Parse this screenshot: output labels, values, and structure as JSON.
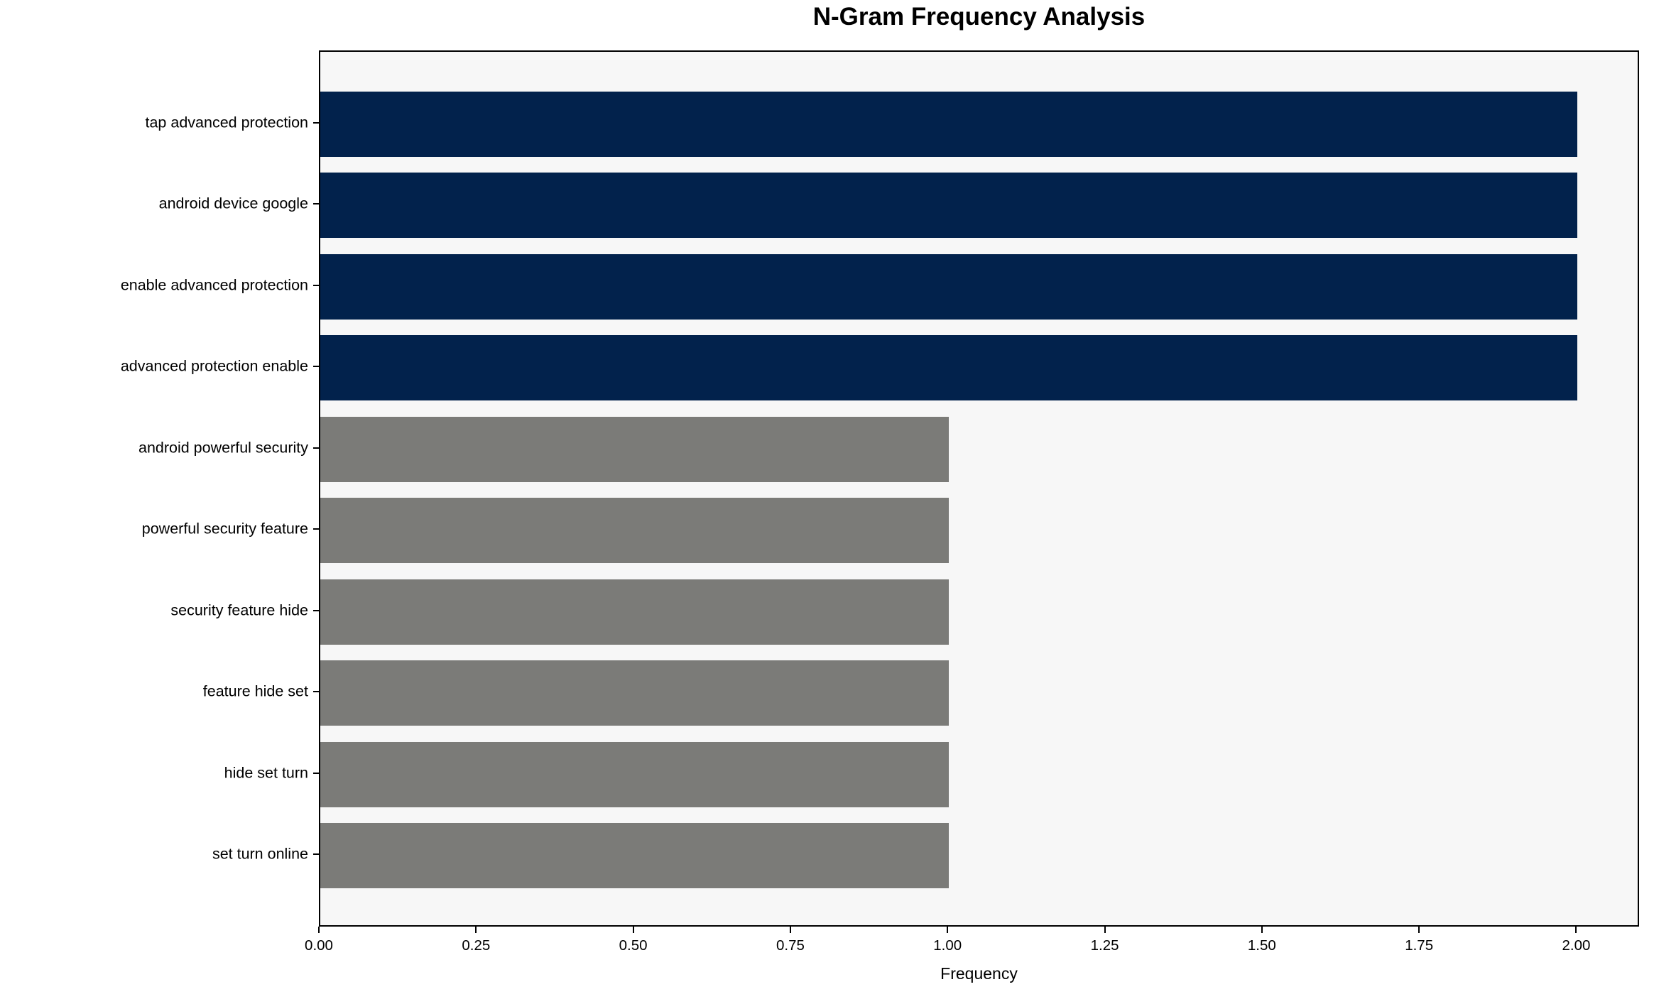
{
  "chart_data": {
    "type": "bar",
    "orientation": "horizontal",
    "title": "N-Gram Frequency Analysis",
    "xlabel": "Frequency",
    "ylabel": "",
    "categories": [
      "tap advanced protection",
      "android device google",
      "enable advanced protection",
      "advanced protection enable",
      "android powerful security",
      "powerful security feature",
      "security feature hide",
      "feature hide set",
      "hide set turn",
      "set turn online"
    ],
    "values": [
      2,
      2,
      2,
      2,
      1,
      1,
      1,
      1,
      1,
      1
    ],
    "bar_colors": [
      "#02224c",
      "#02224c",
      "#02224c",
      "#02224c",
      "#7b7b78",
      "#7b7b78",
      "#7b7b78",
      "#7b7b78",
      "#7b7b78",
      "#7b7b78"
    ],
    "highlight_color": "#02224c",
    "default_color": "#7b7b78",
    "xlim": [
      0,
      2.1
    ],
    "x_tick_values": [
      0,
      0.25,
      0.5,
      0.75,
      1.0,
      1.25,
      1.5,
      1.75,
      2.0
    ],
    "x_tick_labels": [
      "0.00",
      "0.25",
      "0.50",
      "0.75",
      "1.00",
      "1.25",
      "1.50",
      "1.75",
      "2.00"
    ],
    "plot_background": "#f7f7f7",
    "figure_background": "#ffffff",
    "axis_color": "#000000",
    "grid": false,
    "legend_position": null
  }
}
